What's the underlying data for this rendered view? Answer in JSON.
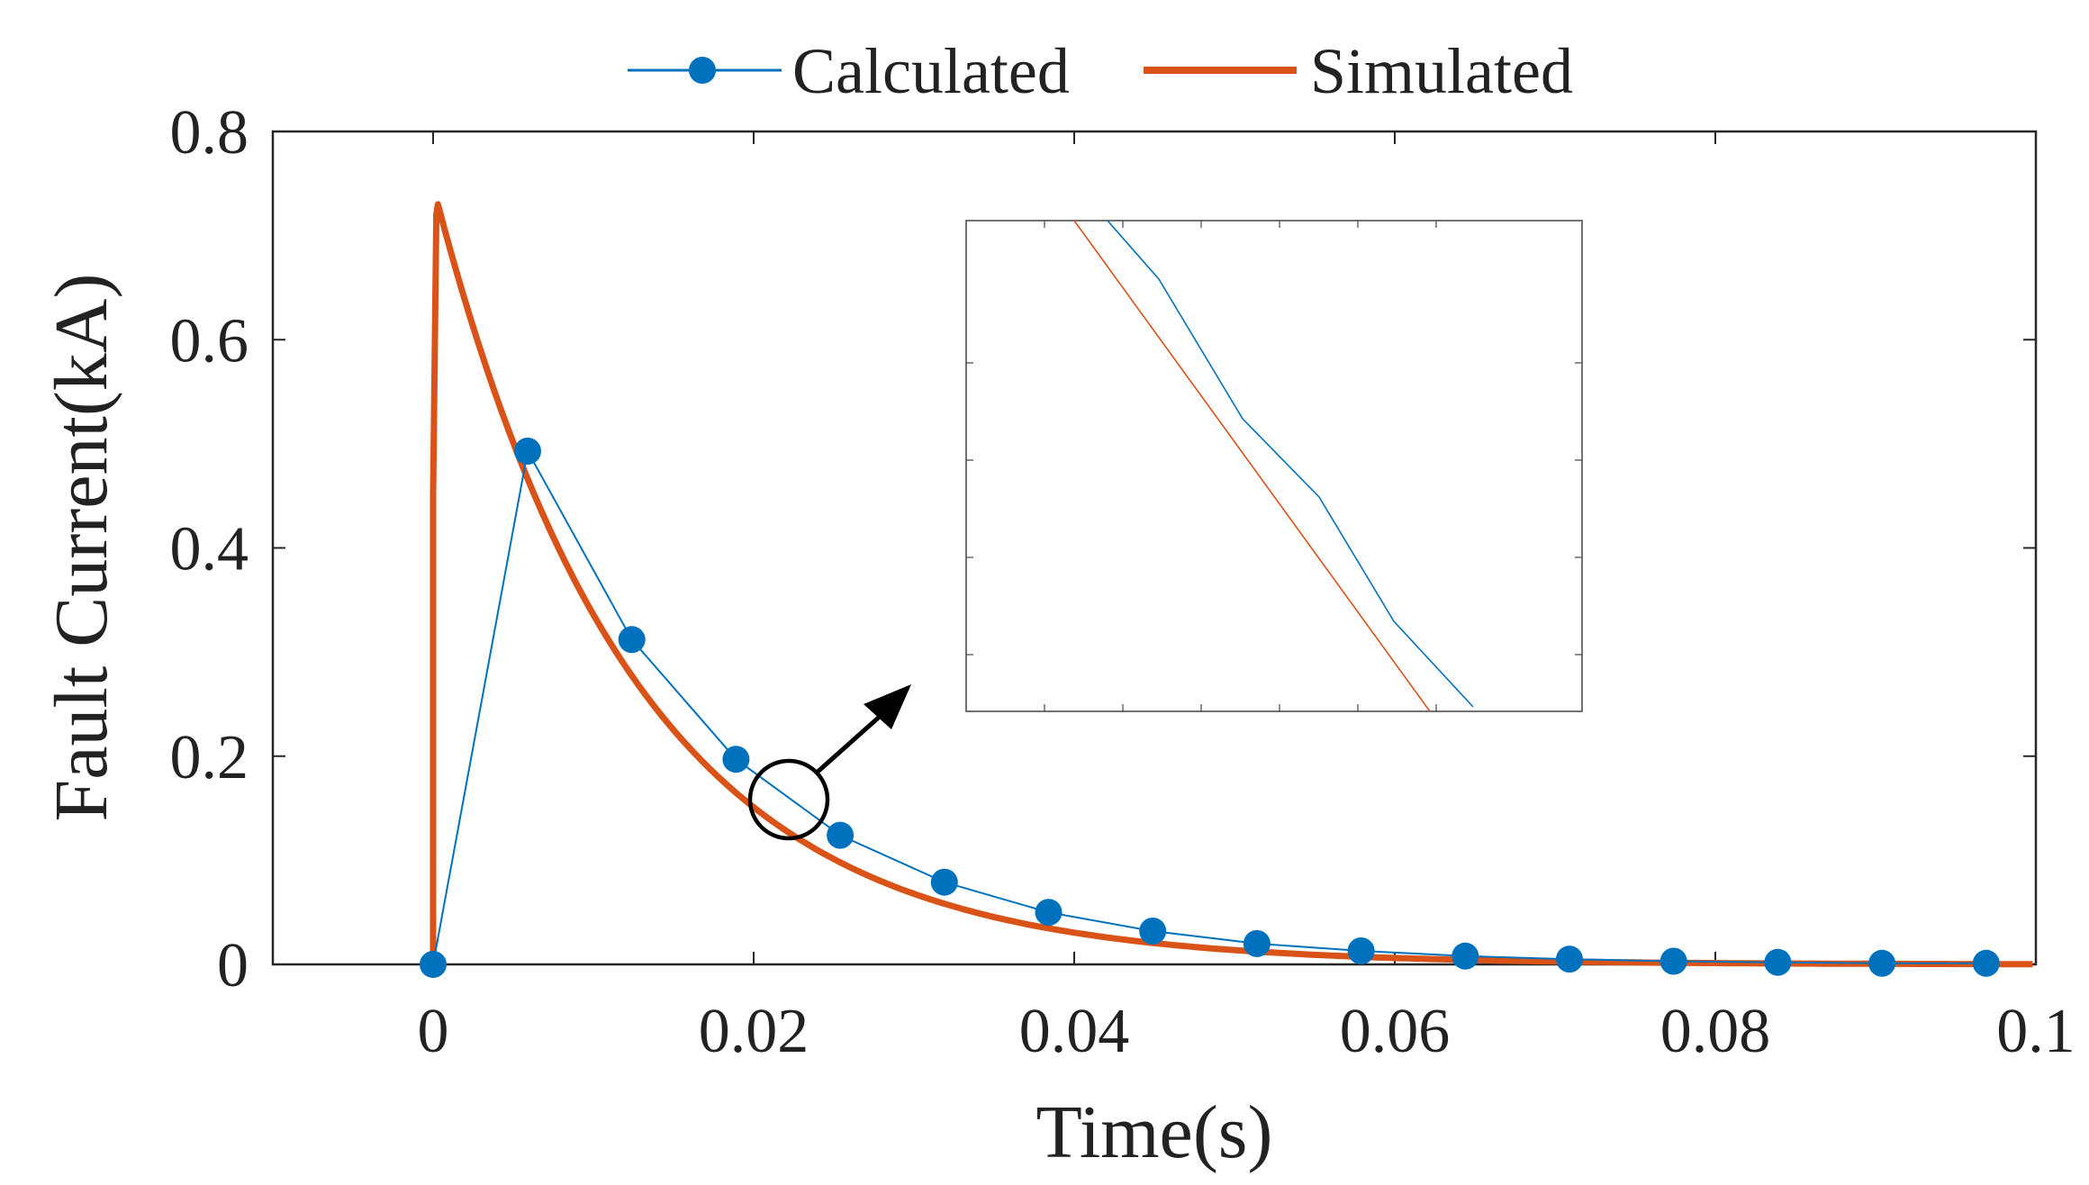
{
  "chart_data": {
    "type": "line",
    "title": "",
    "xlabel": "Time(s)",
    "ylabel": "Fault Current(kA)",
    "xlim": [
      -0.01,
      0.1
    ],
    "ylim": [
      0,
      0.8
    ],
    "xticks": [
      0,
      0.02,
      0.04,
      0.06,
      0.08,
      0.1
    ],
    "xtick_labels": [
      "0",
      "0.02",
      "0.04",
      "0.06",
      "0.08",
      "0.1"
    ],
    "yticks": [
      0,
      0.2,
      0.4,
      0.6,
      0.8
    ],
    "ytick_labels": [
      "0",
      "0.2",
      "0.4",
      "0.6",
      "0.8"
    ],
    "grid": false,
    "legend_position": "top-center",
    "colors": {
      "calculated": "#0072BD",
      "simulated": "#D95319",
      "annotation": "#000000"
    },
    "series": [
      {
        "name": "Calculated",
        "style": "line-with-markers",
        "x": [
          0,
          0.0059,
          0.0124,
          0.0189,
          0.0254,
          0.0319,
          0.0384,
          0.0449,
          0.0514,
          0.0579,
          0.0644,
          0.0709,
          0.0774,
          0.0839,
          0.0904,
          0.0969
        ],
        "y": [
          0,
          0.493,
          0.312,
          0.197,
          0.124,
          0.079,
          0.05,
          0.032,
          0.02,
          0.013,
          0.008,
          0.005,
          0.003,
          0.002,
          0.001,
          0.001
        ]
      },
      {
        "name": "Simulated",
        "style": "line",
        "equation": "y = 0.73 * exp(-(t - 0.0003) / 0.0125) for t >= 0.0003; rises from 0 to 0.73 between t = 0 and t = 0.0003",
        "peak": {
          "x": 0.0003,
          "y": 0.73
        }
      }
    ],
    "annotation": {
      "type": "zoom-circle-with-arrow",
      "circle_center": {
        "x": 0.0225,
        "y": 0.158
      },
      "inset": "zoomed view of the region, no tick labels"
    }
  }
}
